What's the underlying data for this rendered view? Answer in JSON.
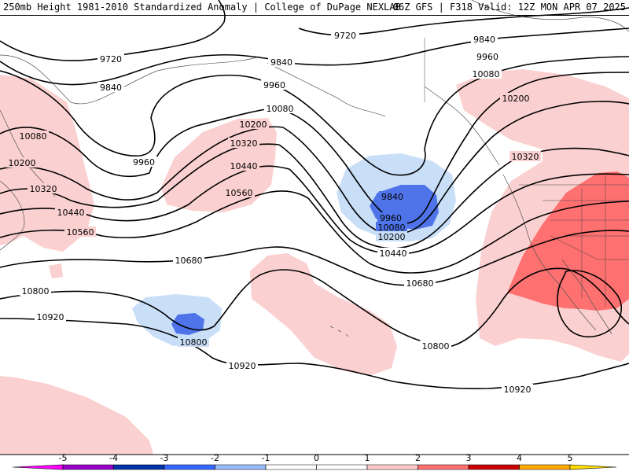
{
  "header": {
    "left": "250mb Height 1981-2010 Standardized Anomaly | College of DuPage NEXLAB",
    "right": "06Z GFS | F318 Valid: 12Z MON APR 07 2025"
  },
  "contours": [
    {
      "label": "9720"
    },
    {
      "label": "9720"
    },
    {
      "label": "9840"
    },
    {
      "label": "9840"
    },
    {
      "label": "9840"
    },
    {
      "label": "9840"
    },
    {
      "label": "9960"
    },
    {
      "label": "9960"
    },
    {
      "label": "9960"
    },
    {
      "label": "9960"
    },
    {
      "label": "10080"
    },
    {
      "label": "10080"
    },
    {
      "label": "10080"
    },
    {
      "label": "10080"
    },
    {
      "label": "10200"
    },
    {
      "label": "10200"
    },
    {
      "label": "10200"
    },
    {
      "label": "10200"
    },
    {
      "label": "10320"
    },
    {
      "label": "10320"
    },
    {
      "label": "10320"
    },
    {
      "label": "10440"
    },
    {
      "label": "10440"
    },
    {
      "label": "10440"
    },
    {
      "label": "10560"
    },
    {
      "label": "10560"
    },
    {
      "label": "10680"
    },
    {
      "label": "10680"
    },
    {
      "label": "10800"
    },
    {
      "label": "10800"
    },
    {
      "label": "10800"
    },
    {
      "label": "10920"
    },
    {
      "label": "10920"
    },
    {
      "label": "10920"
    }
  ],
  "colorbar": {
    "ticks": [
      "-5",
      "-4",
      "-3",
      "-2",
      "-1",
      "0",
      "1",
      "2",
      "3",
      "4",
      "5"
    ],
    "colors": [
      "#ff00ff",
      "#9900cc",
      "#0033aa",
      "#3366ff",
      "#99bbff",
      "#ffffff",
      "#ffffff",
      "#ffc8c8",
      "#ff7070",
      "#cc0000",
      "#ffaa00",
      "#ffdd00"
    ]
  },
  "colors": {
    "neg_light": "#c9dff8",
    "neg_strong": "#4f74ea",
    "pos_light": "#fbd0d0",
    "pos_strong": "#ff7070"
  }
}
